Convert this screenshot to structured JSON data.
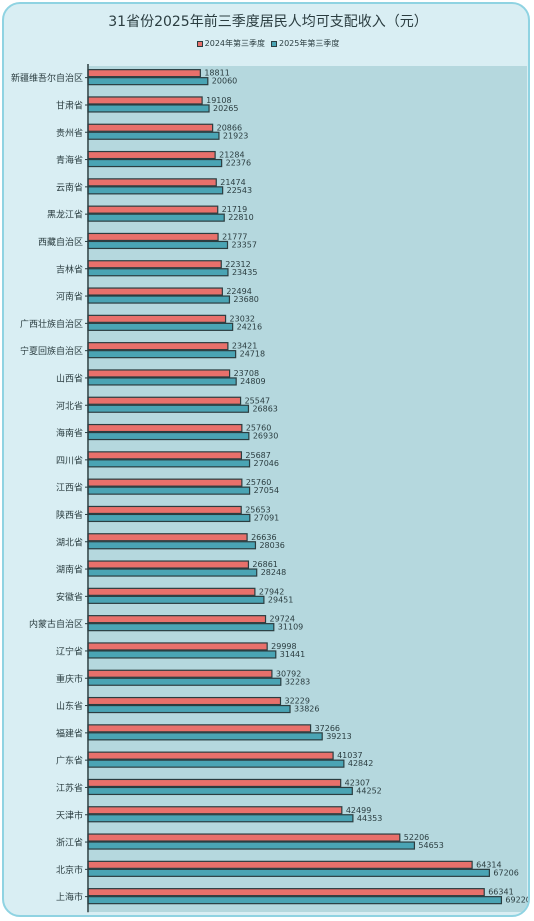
{
  "chart_data": {
    "type": "bar",
    "orientation": "horizontal",
    "title": "31省份2025年前三季度居民人均可支配收入（元）",
    "legend_position": "top",
    "categories": [
      "新疆维吾尔自治区",
      "甘肃省",
      "贵州省",
      "青海省",
      "云南省",
      "黑龙江省",
      "西藏自治区",
      "吉林省",
      "河南省",
      "广西壮族自治区",
      "宁夏回族自治区",
      "山西省",
      "河北省",
      "海南省",
      "四川省",
      "江西省",
      "陕西省",
      "湖北省",
      "湖南省",
      "安徽省",
      "内蒙古自治区",
      "辽宁省",
      "重庆市",
      "山东省",
      "福建省",
      "广东省",
      "江苏省",
      "天津市",
      "浙江省",
      "北京市",
      "上海市"
    ],
    "series": [
      {
        "name": "2024年第三季度",
        "color": "#e8706b",
        "values": [
          18811,
          19108,
          20866,
          21284,
          21474,
          21719,
          21777,
          22312,
          22494,
          23032,
          23421,
          23708,
          25547,
          25760,
          25687,
          25760,
          25653,
          26636,
          26861,
          27942,
          29724,
          29998,
          30792,
          32229,
          37266,
          41037,
          42307,
          42499,
          52206,
          64314,
          66341
        ]
      },
      {
        "name": "2025年第三季度",
        "color": "#4aa4b4",
        "values": [
          20060,
          20265,
          21923,
          22376,
          22543,
          22810,
          23357,
          23435,
          23680,
          24216,
          24718,
          24809,
          26863,
          26930,
          27046,
          27054,
          27091,
          28036,
          28248,
          29451,
          31109,
          31441,
          32283,
          33826,
          39213,
          42842,
          44252,
          44353,
          54653,
          67206,
          69220
        ]
      }
    ],
    "xlim": [
      0,
      73000
    ],
    "grid": false
  }
}
